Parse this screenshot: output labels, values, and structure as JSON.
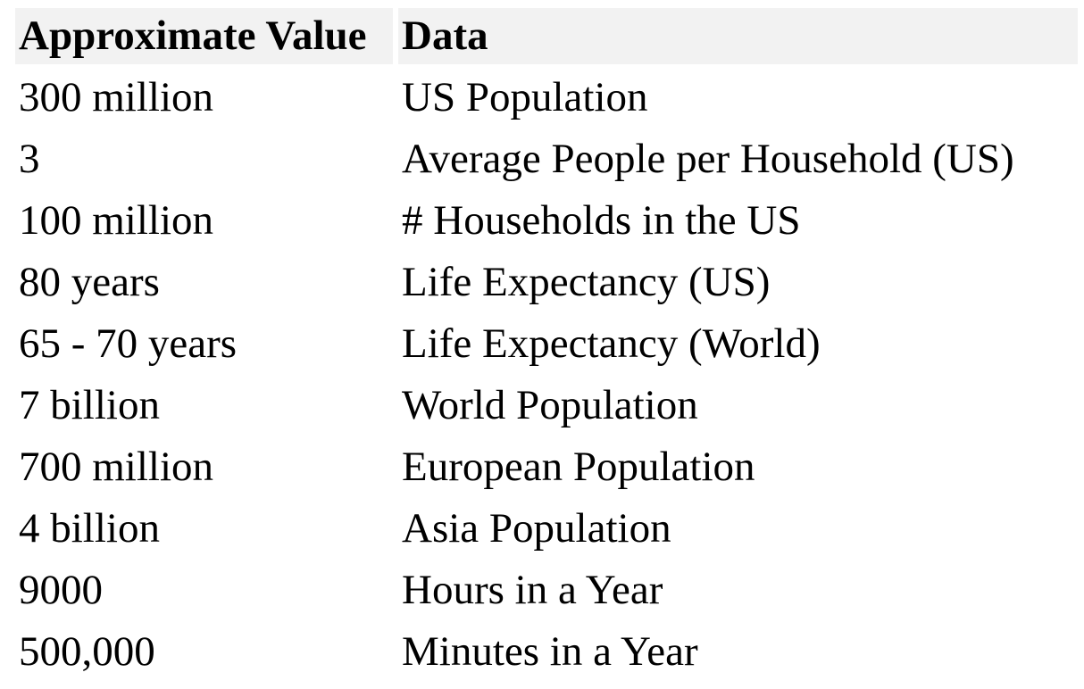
{
  "table": {
    "columns": [
      {
        "label": "Approximate Value"
      },
      {
        "label": "Data"
      }
    ],
    "rows": [
      {
        "value": "300 million",
        "data": "US Population"
      },
      {
        "value": "3",
        "data": "Average People per Household (US)"
      },
      {
        "value": "100 million",
        "data": "# Households in the US"
      },
      {
        "value": "80 years",
        "data": "Life Expectancy (US)"
      },
      {
        "value": "65 - 70 years",
        "data": "Life Expectancy (World)"
      },
      {
        "value": "7 billion",
        "data": "World Population"
      },
      {
        "value": "700 million",
        "data": "European Population"
      },
      {
        "value": "4 billion",
        "data": "Asia Population"
      },
      {
        "value": "9000",
        "data": "Hours in a Year"
      },
      {
        "value": "500,000",
        "data": "Minutes in a Year"
      }
    ]
  },
  "colors": {
    "header_background": "#f2f2f2",
    "text": "#000000",
    "page_background": "#ffffff"
  }
}
